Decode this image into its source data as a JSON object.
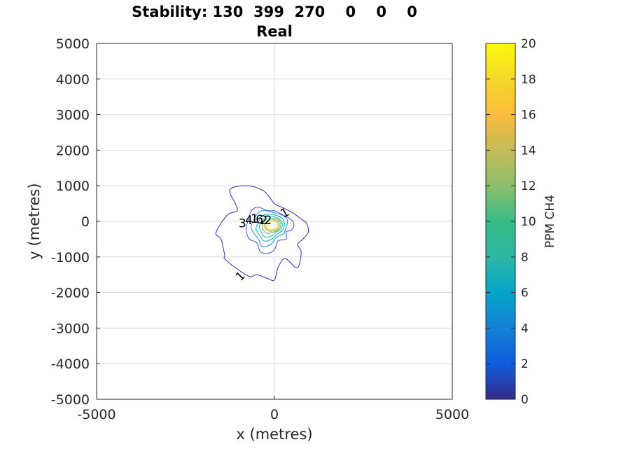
{
  "chart_data": {
    "type": "contour",
    "title_line1": "Stability: 130  399  270    0    0    0",
    "title_line2": "Real",
    "xlabel": "x (metres)",
    "ylabel": "y (metres)",
    "xlim": [
      -5000,
      5000
    ],
    "ylim": [
      -5000,
      5000
    ],
    "xticks": [
      "-5000",
      "0",
      "5000"
    ],
    "yticks": [
      "5000",
      "4000",
      "3000",
      "2000",
      "1000",
      "0",
      "-1000",
      "-2000",
      "-3000",
      "-4000",
      "-5000"
    ],
    "grid": true,
    "colorbar": {
      "label": "PPM CH4",
      "range": [
        0,
        20
      ],
      "ticks": [
        "20",
        "18",
        "16",
        "14",
        "12",
        "10",
        "8",
        "6",
        "4",
        "2",
        "0"
      ],
      "colormap": "parula"
    },
    "contour_levels": [
      1,
      2,
      3,
      4,
      5,
      6,
      7,
      8,
      9,
      10,
      11,
      12,
      13,
      14,
      15,
      16,
      17,
      18,
      19,
      20
    ],
    "contours": [
      {
        "level": 1,
        "color": "#3e26a8",
        "points": [
          [
            -1250,
            900
          ],
          [
            -750,
            1000
          ],
          [
            -300,
            850
          ],
          [
            0,
            500
          ],
          [
            200,
            400
          ],
          [
            500,
            250
          ],
          [
            700,
            100
          ],
          [
            900,
            -50
          ],
          [
            950,
            -300
          ],
          [
            800,
            -500
          ],
          [
            650,
            -650
          ],
          [
            750,
            -850
          ],
          [
            700,
            -1200
          ],
          [
            600,
            -1300
          ],
          [
            300,
            -1050
          ],
          [
            100,
            -1300
          ],
          [
            0,
            -1650
          ],
          [
            -200,
            -1600
          ],
          [
            -500,
            -1500
          ],
          [
            -700,
            -1550
          ],
          [
            -1100,
            -1300
          ],
          [
            -1400,
            -1050
          ],
          [
            -1400,
            -950
          ],
          [
            -1500,
            -500
          ],
          [
            -1650,
            -350
          ],
          [
            -1500,
            -50
          ],
          [
            -1300,
            200
          ],
          [
            -1050,
            300
          ],
          [
            -1100,
            500
          ],
          [
            -1250,
            900
          ]
        ]
      },
      {
        "level": 2,
        "color": "#2f4ee4",
        "points": [
          [
            -650,
            300
          ],
          [
            -450,
            400
          ],
          [
            -200,
            300
          ],
          [
            0,
            300
          ],
          [
            150,
            230
          ],
          [
            300,
            150
          ],
          [
            470,
            50
          ],
          [
            550,
            -100
          ],
          [
            470,
            -250
          ],
          [
            330,
            -300
          ],
          [
            330,
            -500
          ],
          [
            100,
            -550
          ],
          [
            0,
            -800
          ],
          [
            -200,
            -900
          ],
          [
            -400,
            -850
          ],
          [
            -500,
            -600
          ],
          [
            -700,
            -500
          ],
          [
            -800,
            -250
          ],
          [
            -750,
            0
          ],
          [
            -650,
            300
          ]
        ]
      },
      {
        "level": 3,
        "color": "#1b8bdc",
        "points": [
          [
            -450,
            250
          ],
          [
            -250,
            300
          ],
          [
            -50,
            250
          ],
          [
            150,
            200
          ],
          [
            300,
            120
          ],
          [
            370,
            0
          ],
          [
            320,
            -200
          ],
          [
            250,
            -350
          ],
          [
            50,
            -450
          ],
          [
            -100,
            -650
          ],
          [
            -350,
            -700
          ],
          [
            -450,
            -500
          ],
          [
            -600,
            -300
          ],
          [
            -650,
            -100
          ],
          [
            -450,
            250
          ]
        ]
      },
      {
        "level": 5,
        "color": "#08a8c8",
        "points": [
          [
            -350,
            150
          ],
          [
            -200,
            200
          ],
          [
            0,
            180
          ],
          [
            200,
            100
          ],
          [
            280,
            -50
          ],
          [
            230,
            -250
          ],
          [
            80,
            -350
          ],
          [
            -80,
            -500
          ],
          [
            -300,
            -550
          ],
          [
            -420,
            -380
          ],
          [
            -520,
            -200
          ],
          [
            -450,
            -20
          ],
          [
            -350,
            150
          ]
        ]
      },
      {
        "level": 7,
        "color": "#22b6a8",
        "points": [
          [
            -280,
            100
          ],
          [
            -100,
            140
          ],
          [
            100,
            80
          ],
          [
            220,
            -60
          ],
          [
            180,
            -220
          ],
          [
            50,
            -300
          ],
          [
            -100,
            -420
          ],
          [
            -280,
            -430
          ],
          [
            -380,
            -280
          ],
          [
            -420,
            -120
          ],
          [
            -280,
            100
          ]
        ]
      },
      {
        "level": 10,
        "color": "#59bf84",
        "points": [
          [
            -220,
            60
          ],
          [
            -50,
            90
          ],
          [
            120,
            30
          ],
          [
            180,
            -100
          ],
          [
            120,
            -230
          ],
          [
            -30,
            -300
          ],
          [
            -200,
            -340
          ],
          [
            -320,
            -230
          ],
          [
            -330,
            -80
          ],
          [
            -220,
            60
          ]
        ]
      },
      {
        "level": 13,
        "color": "#a3be61",
        "points": [
          [
            -170,
            40
          ],
          [
            0,
            50
          ],
          [
            120,
            -20
          ],
          [
            140,
            -140
          ],
          [
            50,
            -240
          ],
          [
            -130,
            -280
          ],
          [
            -260,
            -200
          ],
          [
            -280,
            -70
          ],
          [
            -170,
            40
          ]
        ]
      },
      {
        "level": 16,
        "color": "#ffc33d",
        "points": [
          [
            -140,
            10
          ],
          [
            30,
            20
          ],
          [
            110,
            -60
          ],
          [
            100,
            -180
          ],
          [
            -20,
            -240
          ],
          [
            -180,
            -240
          ],
          [
            -250,
            -140
          ],
          [
            -230,
            -40
          ],
          [
            -140,
            10
          ]
        ]
      },
      {
        "level": 19,
        "color": "#f5e52a",
        "points": [
          [
            -110,
            -20
          ],
          [
            40,
            -10
          ],
          [
            90,
            -80
          ],
          [
            60,
            -180
          ],
          [
            -60,
            -220
          ],
          [
            -190,
            -200
          ],
          [
            -220,
            -110
          ],
          [
            -110,
            -20
          ]
        ]
      }
    ],
    "contour_labels": [
      {
        "text": "1",
        "x": 300,
        "y": 230,
        "angle": -30
      },
      {
        "text": "1",
        "x": -950,
        "y": -1550,
        "angle": -45
      },
      {
        "text": "3",
        "x": -900,
        "y": -70,
        "angle": 0
      },
      {
        "text": "4",
        "x": -720,
        "y": 20,
        "angle": 0
      },
      {
        "text": "1",
        "x": -560,
        "y": 60,
        "angle": 0
      },
      {
        "text": "6",
        "x": -420,
        "y": 40,
        "angle": 0
      },
      {
        "text": "2",
        "x": -300,
        "y": 20,
        "angle": 0
      },
      {
        "text": "2",
        "x": -180,
        "y": 20,
        "angle": 0
      }
    ]
  }
}
